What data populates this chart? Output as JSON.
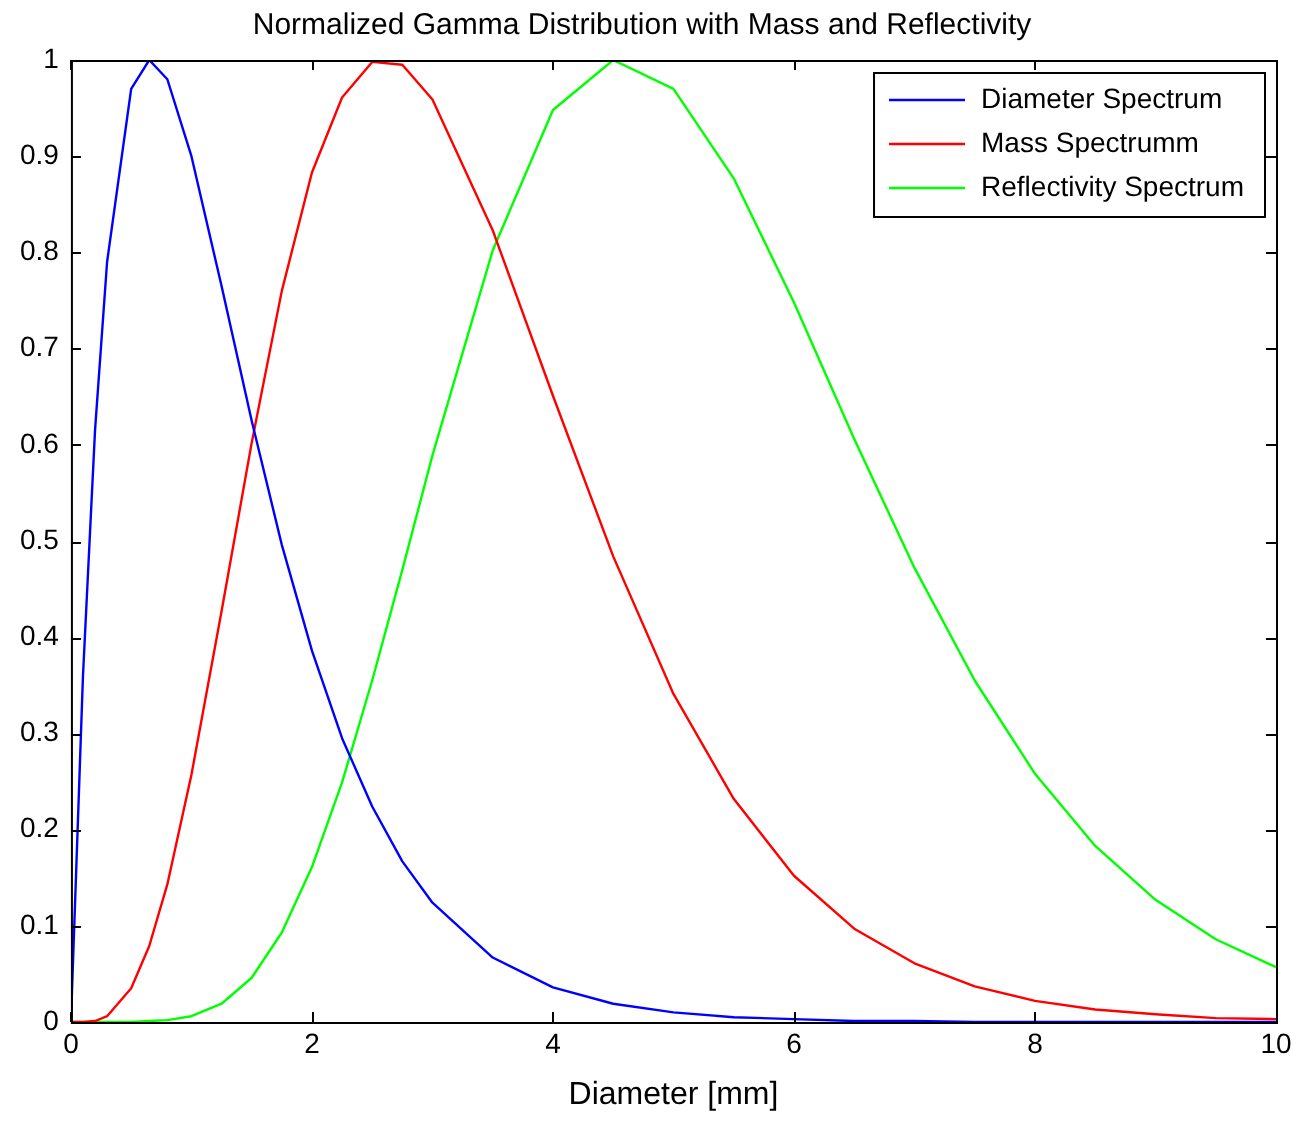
{
  "chart_data": {
    "type": "line",
    "title": "Normalized Gamma Distribution with Mass and Reflectivity",
    "xlabel": "Diameter [mm]",
    "x": [
      0,
      0.1,
      0.2,
      0.3,
      0.5,
      0.65,
      0.8,
      1,
      1.25,
      1.5,
      1.75,
      2,
      2.25,
      2.5,
      2.75,
      3,
      3.5,
      4,
      4.5,
      5,
      5.5,
      6,
      6.5,
      7,
      7.5,
      8,
      8.5,
      9,
      9.5,
      10
    ],
    "series": [
      {
        "name": "Diameter Spectrum",
        "color": "#0000ff",
        "values": [
          0,
          0.36,
          0.615,
          0.79,
          0.97,
          1,
          0.98,
          0.9,
          0.765,
          0.625,
          0.496,
          0.386,
          0.295,
          0.224,
          0.167,
          0.124,
          0.067,
          0.036,
          0.019,
          0.01,
          0.005,
          0.003,
          0.001,
          0.001,
          0,
          0,
          0,
          0,
          0,
          0
        ]
      },
      {
        "name": "Mass Spectrumm",
        "color": "#ff0000",
        "values": [
          0,
          0,
          0.001,
          0.006,
          0.035,
          0.079,
          0.143,
          0.257,
          0.427,
          0.602,
          0.76,
          0.883,
          0.961,
          0.998,
          0.995,
          0.959,
          0.823,
          0.651,
          0.484,
          0.341,
          0.232,
          0.152,
          0.097,
          0.061,
          0.037,
          0.022,
          0.013,
          0.008,
          0.004,
          0.003
        ]
      },
      {
        "name": "Reflectivity Spectrum",
        "color": "#00ff00",
        "values": [
          0,
          0,
          0,
          0,
          0,
          0.001,
          0.002,
          0.006,
          0.019,
          0.046,
          0.093,
          0.161,
          0.249,
          0.355,
          0.47,
          0.589,
          0.802,
          0.948,
          1,
          0.97,
          0.877,
          0.748,
          0.606,
          0.472,
          0.355,
          0.258,
          0.183,
          0.127,
          0.086,
          0.057
        ]
      }
    ],
    "xlim": [
      0,
      10
    ],
    "xticks": [
      0,
      2,
      4,
      6,
      8,
      10
    ],
    "ylim": [
      0,
      1
    ],
    "yticks": [
      0,
      0.1,
      0.2,
      0.3,
      0.4,
      0.5,
      0.6,
      0.7,
      0.8,
      0.9,
      1
    ],
    "grid": false,
    "legend": "top right",
    "line_style": "solid",
    "marker": "none"
  }
}
